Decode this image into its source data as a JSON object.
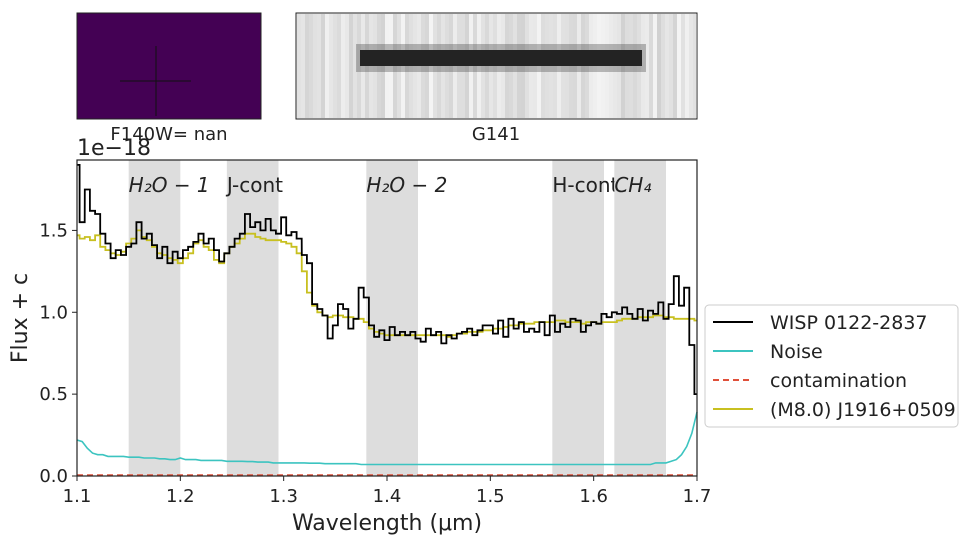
{
  "panels": {
    "image_label": "F140W= nan",
    "spectrum_label": "G141"
  },
  "offset_text": "1e−18",
  "chart_data": {
    "type": "line",
    "title": "",
    "xlabel": "Wavelength (μm)",
    "ylabel": "Flux + c",
    "xlim": [
      1.1,
      1.7
    ],
    "ylim": [
      0,
      1.93
    ],
    "y_scale_factor": "1e-18",
    "x_ticks": [
      "1.1",
      "1.2",
      "1.3",
      "1.4",
      "1.5",
      "1.6",
      "1.7"
    ],
    "y_ticks": [
      "0.0",
      "0.5",
      "1.0",
      "1.5"
    ],
    "grid": false,
    "legend_position": "center-right outside",
    "bands": [
      {
        "label": "H₂O − 1",
        "range": [
          1.15,
          1.2
        ],
        "italic": true
      },
      {
        "label": "J-cont",
        "range": [
          1.245,
          1.295
        ],
        "italic": false
      },
      {
        "label": "H₂O − 2",
        "range": [
          1.38,
          1.43
        ],
        "italic": true
      },
      {
        "label": "H-cont",
        "range": [
          1.56,
          1.61
        ],
        "italic": false
      },
      {
        "label": "CH₄",
        "range": [
          1.62,
          1.67
        ],
        "italic": true
      }
    ],
    "x": [
      1.1,
      1.105,
      1.11,
      1.115,
      1.12,
      1.125,
      1.13,
      1.135,
      1.14,
      1.145,
      1.15,
      1.155,
      1.16,
      1.165,
      1.17,
      1.175,
      1.18,
      1.185,
      1.19,
      1.195,
      1.2,
      1.205,
      1.21,
      1.215,
      1.22,
      1.225,
      1.23,
      1.235,
      1.24,
      1.245,
      1.25,
      1.255,
      1.26,
      1.265,
      1.27,
      1.275,
      1.28,
      1.285,
      1.29,
      1.295,
      1.3,
      1.305,
      1.31,
      1.315,
      1.32,
      1.325,
      1.33,
      1.335,
      1.34,
      1.345,
      1.35,
      1.355,
      1.36,
      1.365,
      1.37,
      1.375,
      1.38,
      1.385,
      1.39,
      1.395,
      1.4,
      1.405,
      1.41,
      1.415,
      1.42,
      1.425,
      1.43,
      1.435,
      1.44,
      1.445,
      1.45,
      1.455,
      1.46,
      1.465,
      1.47,
      1.475,
      1.48,
      1.485,
      1.49,
      1.495,
      1.5,
      1.505,
      1.51,
      1.515,
      1.52,
      1.525,
      1.53,
      1.535,
      1.54,
      1.545,
      1.55,
      1.555,
      1.56,
      1.565,
      1.57,
      1.575,
      1.58,
      1.585,
      1.59,
      1.595,
      1.6,
      1.605,
      1.61,
      1.615,
      1.62,
      1.625,
      1.63,
      1.635,
      1.64,
      1.645,
      1.65,
      1.655,
      1.66,
      1.665,
      1.67,
      1.675,
      1.68,
      1.685,
      1.69,
      1.695,
      1.7
    ],
    "series": [
      {
        "name": "WISP 0122-2837",
        "color": "#000000",
        "style": "steps",
        "values": [
          1.9,
          1.55,
          1.75,
          1.62,
          1.6,
          1.48,
          1.42,
          1.33,
          1.38,
          1.35,
          1.4,
          1.42,
          1.55,
          1.45,
          1.48,
          1.41,
          1.33,
          1.4,
          1.3,
          1.37,
          1.33,
          1.38,
          1.4,
          1.43,
          1.48,
          1.42,
          1.45,
          1.38,
          1.31,
          1.36,
          1.4,
          1.45,
          1.48,
          1.6,
          1.52,
          1.55,
          1.5,
          1.57,
          1.5,
          1.48,
          1.58,
          1.47,
          1.49,
          1.45,
          1.35,
          1.3,
          1.05,
          1.02,
          0.98,
          0.84,
          0.92,
          1.05,
          1.02,
          0.9,
          0.96,
          1.15,
          1.09,
          0.92,
          0.85,
          0.89,
          0.83,
          0.91,
          0.86,
          0.88,
          0.86,
          0.88,
          0.84,
          0.82,
          0.9,
          0.86,
          0.88,
          0.81,
          0.86,
          0.84,
          0.87,
          0.88,
          0.9,
          0.86,
          0.89,
          0.92,
          0.92,
          0.87,
          0.95,
          0.85,
          0.96,
          0.9,
          0.94,
          0.88,
          0.9,
          0.88,
          0.94,
          0.86,
          0.98,
          0.88,
          0.93,
          0.91,
          0.96,
          0.95,
          0.88,
          0.92,
          0.94,
          0.93,
          0.99,
          0.97,
          1.0,
          0.99,
          1.03,
          0.99,
          0.96,
          1.02,
          0.95,
          1.01,
          0.99,
          1.06,
          0.96,
          1.05,
          1.22,
          1.04,
          1.15,
          0.8,
          0.5
        ]
      },
      {
        "name": "Noise",
        "color": "#3cc4c0",
        "style": "line",
        "values": [
          0.22,
          0.21,
          0.17,
          0.14,
          0.13,
          0.13,
          0.12,
          0.12,
          0.12,
          0.12,
          0.115,
          0.115,
          0.115,
          0.11,
          0.11,
          0.11,
          0.105,
          0.105,
          0.1,
          0.1,
          0.11,
          0.1,
          0.1,
          0.1,
          0.095,
          0.095,
          0.095,
          0.095,
          0.095,
          0.09,
          0.09,
          0.09,
          0.09,
          0.088,
          0.088,
          0.085,
          0.085,
          0.085,
          0.08,
          0.08,
          0.08,
          0.08,
          0.08,
          0.08,
          0.08,
          0.078,
          0.078,
          0.078,
          0.075,
          0.075,
          0.075,
          0.075,
          0.075,
          0.075,
          0.075,
          0.07,
          0.07,
          0.07,
          0.07,
          0.07,
          0.07,
          0.07,
          0.07,
          0.07,
          0.07,
          0.07,
          0.07,
          0.07,
          0.07,
          0.07,
          0.07,
          0.07,
          0.07,
          0.07,
          0.07,
          0.07,
          0.07,
          0.07,
          0.07,
          0.07,
          0.07,
          0.07,
          0.07,
          0.07,
          0.07,
          0.07,
          0.07,
          0.07,
          0.07,
          0.07,
          0.07,
          0.07,
          0.07,
          0.07,
          0.07,
          0.07,
          0.07,
          0.07,
          0.07,
          0.07,
          0.07,
          0.07,
          0.07,
          0.07,
          0.07,
          0.07,
          0.07,
          0.07,
          0.07,
          0.07,
          0.07,
          0.07,
          0.08,
          0.08,
          0.08,
          0.09,
          0.1,
          0.13,
          0.18,
          0.26,
          0.39
        ]
      },
      {
        "name": "contamination",
        "color": "#e0503a",
        "style": "dashed",
        "values": [
          0.005,
          0.005,
          0.005,
          0.005,
          0.005,
          0.005,
          0.005,
          0.005,
          0.005,
          0.005,
          0.005,
          0.005,
          0.005,
          0.005,
          0.005,
          0.005,
          0.005,
          0.005,
          0.005,
          0.005,
          0.005,
          0.005,
          0.005,
          0.005,
          0.005,
          0.005,
          0.005,
          0.005,
          0.005,
          0.005,
          0.005,
          0.005,
          0.005,
          0.005,
          0.005,
          0.005,
          0.005,
          0.005,
          0.005,
          0.005,
          0.005,
          0.005,
          0.005,
          0.005,
          0.005,
          0.005,
          0.005,
          0.005,
          0.005,
          0.005,
          0.005,
          0.005,
          0.005,
          0.005,
          0.005,
          0.005,
          0.005,
          0.005,
          0.005,
          0.005,
          0.005,
          0.005,
          0.005,
          0.005,
          0.005,
          0.005,
          0.005,
          0.005,
          0.005,
          0.005,
          0.005,
          0.005,
          0.005,
          0.005,
          0.005,
          0.005,
          0.005,
          0.005,
          0.005,
          0.005,
          0.005,
          0.005,
          0.005,
          0.005,
          0.005,
          0.005,
          0.005,
          0.005,
          0.005,
          0.005,
          0.005,
          0.005,
          0.005,
          0.005,
          0.005,
          0.005,
          0.005,
          0.005,
          0.005,
          0.005,
          0.005,
          0.005,
          0.005,
          0.005,
          0.005,
          0.005,
          0.005,
          0.005,
          0.005,
          0.005,
          0.005,
          0.005,
          0.005,
          0.005,
          0.005,
          0.005,
          0.005,
          0.005,
          0.005,
          0.005,
          0.005
        ]
      },
      {
        "name": "(M8.0) J1916+0509",
        "color": "#c8c020",
        "style": "steps",
        "values": [
          1.47,
          1.45,
          1.46,
          1.44,
          1.47,
          1.4,
          1.38,
          1.36,
          1.35,
          1.37,
          1.42,
          1.45,
          1.5,
          1.46,
          1.44,
          1.4,
          1.36,
          1.35,
          1.33,
          1.32,
          1.3,
          1.33,
          1.36,
          1.42,
          1.44,
          1.4,
          1.38,
          1.32,
          1.3,
          1.36,
          1.4,
          1.42,
          1.45,
          1.48,
          1.48,
          1.46,
          1.45,
          1.44,
          1.44,
          1.44,
          1.43,
          1.42,
          1.4,
          1.36,
          1.25,
          1.12,
          1.04,
          1.0,
          0.98,
          0.97,
          0.98,
          0.98,
          0.97,
          0.97,
          0.96,
          0.96,
          0.94,
          0.9,
          0.88,
          0.87,
          0.86,
          0.86,
          0.86,
          0.86,
          0.86,
          0.86,
          0.86,
          0.86,
          0.86,
          0.86,
          0.86,
          0.86,
          0.85,
          0.86,
          0.87,
          0.87,
          0.88,
          0.88,
          0.88,
          0.89,
          0.89,
          0.9,
          0.9,
          0.91,
          0.92,
          0.92,
          0.93,
          0.93,
          0.93,
          0.94,
          0.94,
          0.94,
          0.94,
          0.95,
          0.95,
          0.94,
          0.94,
          0.94,
          0.93,
          0.94,
          0.94,
          0.93,
          0.94,
          0.94,
          0.94,
          0.95,
          0.96,
          0.96,
          0.96,
          0.97,
          0.97,
          0.97,
          0.98,
          0.98,
          0.97,
          0.97,
          0.96,
          0.96,
          0.96,
          0.96,
          0.95
        ]
      }
    ]
  }
}
